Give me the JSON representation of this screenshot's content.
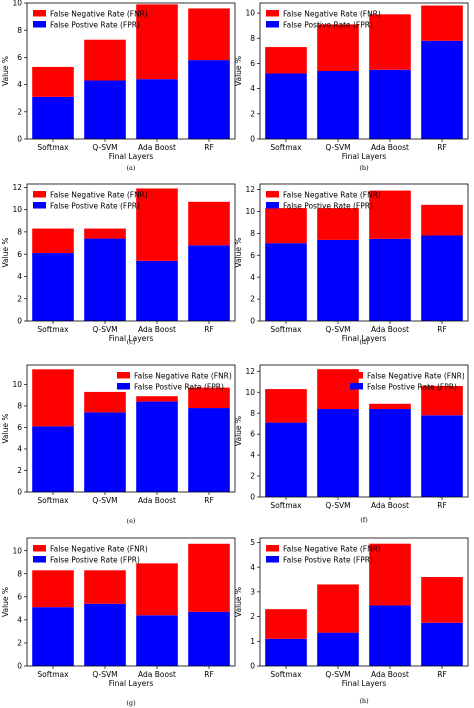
{
  "colors": {
    "fnr": "#ff0000",
    "fpr": "#0000ff"
  },
  "chart_data": [
    {
      "id": "a",
      "type": "bar",
      "stacked": true,
      "caption": "(a)",
      "categories": [
        "Softmax",
        "Q-SVM",
        "Ada Boost",
        "RF"
      ],
      "series": [
        {
          "name": "False Postive Rate (FPR)",
          "color_key": "fpr",
          "values": [
            3.1,
            4.3,
            4.4,
            5.8
          ]
        },
        {
          "name": "False Negative Rate (FNR)",
          "color_key": "fnr",
          "values": [
            2.2,
            3.0,
            5.5,
            3.8
          ]
        }
      ],
      "ylabel": "Value %",
      "xlabel": "Final Layers",
      "ylim": [
        0,
        10
      ],
      "yticks": [
        0,
        2,
        4,
        6,
        8,
        10
      ],
      "legend": "top-left"
    },
    {
      "id": "b",
      "type": "bar",
      "stacked": true,
      "caption": "(b)",
      "categories": [
        "Softmax",
        "Q-SVM",
        "Ada Boost",
        "RF"
      ],
      "series": [
        {
          "name": "False Postive Rate (FPR)",
          "color_key": "fpr",
          "values": [
            5.2,
            5.4,
            5.5,
            7.8
          ]
        },
        {
          "name": "False Negative Rate (FNR)",
          "color_key": "fnr",
          "values": [
            2.1,
            3.7,
            4.4,
            2.8
          ]
        }
      ],
      "ylabel": "Value %",
      "xlabel": "Final Layers",
      "ylim": [
        0,
        10.8
      ],
      "yticks": [
        0,
        2,
        4,
        6,
        8,
        10
      ],
      "legend": "top-left"
    },
    {
      "id": "c",
      "type": "bar",
      "stacked": true,
      "caption": "(c)",
      "categories": [
        "Softmax",
        "Q-SVM",
        "Ada Boost",
        "RF"
      ],
      "series": [
        {
          "name": "False Postive Rate (FPR)",
          "color_key": "fpr",
          "values": [
            6.1,
            7.4,
            5.4,
            6.8
          ]
        },
        {
          "name": "False Negative Rate (FNR)",
          "color_key": "fnr",
          "values": [
            2.2,
            0.9,
            6.5,
            3.9
          ]
        }
      ],
      "ylabel": "Value %",
      "xlabel": "Final Layers",
      "ylim": [
        0,
        12.3
      ],
      "yticks": [
        0,
        2,
        4,
        6,
        8,
        10,
        12
      ],
      "legend": "top-left"
    },
    {
      "id": "d",
      "type": "bar",
      "stacked": true,
      "caption": "(d)",
      "categories": [
        "Softmax",
        "Q-SVM",
        "Ada Boost",
        "RF"
      ],
      "series": [
        {
          "name": "False Postive Rate (FPR)",
          "color_key": "fpr",
          "values": [
            7.1,
            7.4,
            7.5,
            7.8
          ]
        },
        {
          "name": "False Negative Rate (FNR)",
          "color_key": "fnr",
          "values": [
            3.2,
            2.9,
            4.4,
            2.8
          ]
        }
      ],
      "ylabel": "Value %",
      "xlabel": "Final Layers",
      "ylim": [
        0,
        12.5
      ],
      "yticks": [
        0,
        2,
        4,
        6,
        8,
        10,
        12
      ],
      "legend": "top-left"
    },
    {
      "id": "e",
      "type": "bar",
      "stacked": true,
      "caption": "(e)",
      "categories": [
        "Softmax",
        "Q-SVM",
        "Ada Boost",
        "RF"
      ],
      "series": [
        {
          "name": "False Postive Rate (FPR)",
          "color_key": "fpr",
          "values": [
            6.1,
            7.4,
            8.4,
            7.8
          ]
        },
        {
          "name": "False Negative Rate (FNR)",
          "color_key": "fnr",
          "values": [
            5.3,
            1.9,
            0.5,
            1.9
          ]
        }
      ],
      "ylabel": "Value %",
      "xlabel": "",
      "ylim": [
        0,
        11.8
      ],
      "yticks": [
        0,
        2,
        4,
        6,
        8,
        10
      ],
      "legend": "top-right"
    },
    {
      "id": "f",
      "type": "bar",
      "stacked": true,
      "caption": "(f)",
      "categories": [
        "Softmax",
        "Q-SVM",
        "Ada Boost",
        "RF"
      ],
      "series": [
        {
          "name": "False Postive Rate (FPR)",
          "color_key": "fpr",
          "values": [
            7.1,
            8.4,
            8.4,
            7.8
          ]
        },
        {
          "name": "False Negative Rate (FNR)",
          "color_key": "fnr",
          "values": [
            3.2,
            3.8,
            0.5,
            2.8
          ]
        }
      ],
      "ylabel": "Value %",
      "xlabel": "",
      "ylim": [
        0,
        12.6
      ],
      "yticks": [
        0,
        2,
        4,
        6,
        8,
        10,
        12
      ],
      "legend": "top-right"
    },
    {
      "id": "g",
      "type": "bar",
      "stacked": true,
      "caption": "(g)",
      "categories": [
        "Softmax",
        "Q-SVM",
        "Ada Boost",
        "RF"
      ],
      "series": [
        {
          "name": "False Postive Rate (FPR)",
          "color_key": "fpr",
          "values": [
            5.1,
            5.4,
            4.4,
            4.7
          ]
        },
        {
          "name": "False Negative Rate (FNR)",
          "color_key": "fnr",
          "values": [
            3.2,
            2.9,
            4.5,
            5.9
          ]
        }
      ],
      "ylabel": "Value %",
      "xlabel": "Final Layers",
      "ylim": [
        0,
        11.1
      ],
      "yticks": [
        0,
        2,
        4,
        6,
        8,
        10
      ],
      "legend": "top-left"
    },
    {
      "id": "h",
      "type": "bar",
      "stacked": true,
      "caption": "(h)",
      "categories": [
        "Softmax",
        "Q-SVM",
        "Ada Boost",
        "RF"
      ],
      "series": [
        {
          "name": "False Postive Rate (FPR)",
          "color_key": "fpr",
          "values": [
            1.1,
            1.35,
            2.45,
            1.75
          ]
        },
        {
          "name": "False Negative Rate (FNR)",
          "color_key": "fnr",
          "values": [
            1.2,
            1.95,
            2.5,
            1.85
          ]
        }
      ],
      "ylabel": "Value %",
      "xlabel": "Final Layers",
      "ylim": [
        0,
        5.18
      ],
      "yticks": [
        0,
        1,
        2,
        3,
        4,
        5
      ],
      "legend": "top-left"
    }
  ]
}
